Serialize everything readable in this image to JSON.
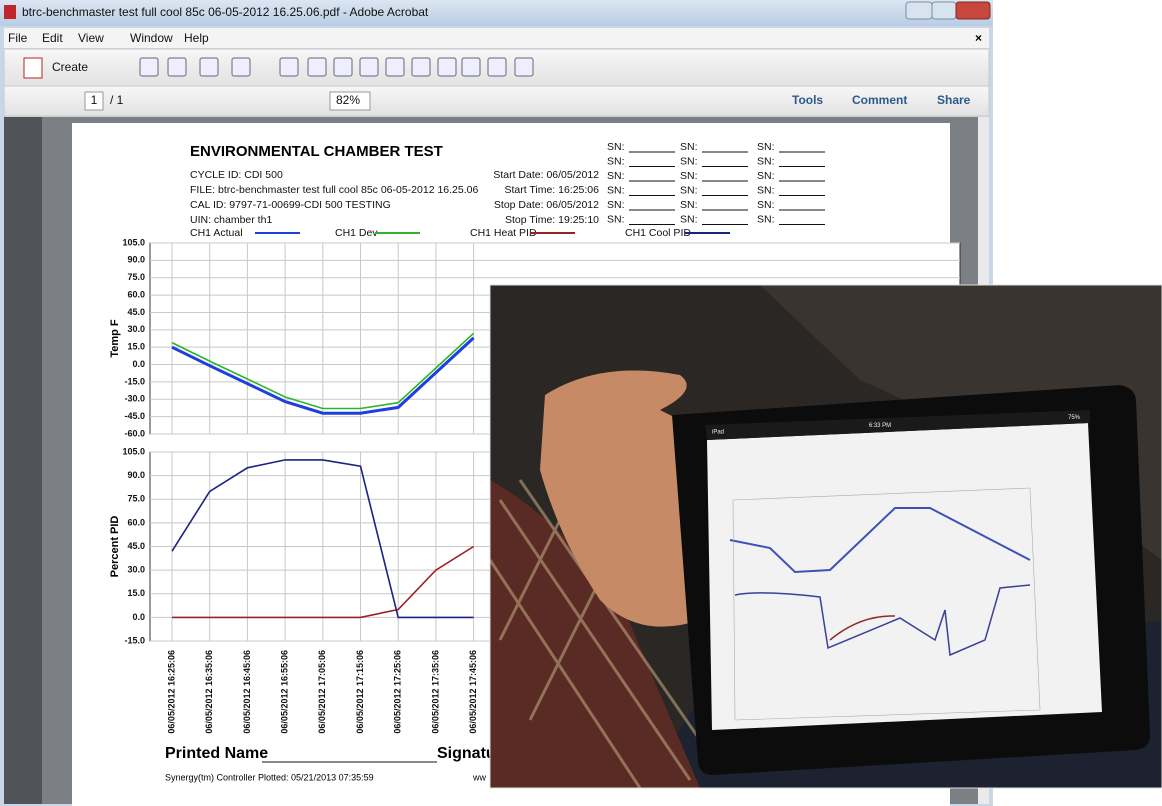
{
  "window": {
    "title": "btrc-benchmaster test full cool 85c 06-05-2012 16.25.06.pdf - Adobe Acrobat"
  },
  "menu": {
    "items": [
      "File",
      "Edit",
      "View",
      "Window",
      "Help"
    ]
  },
  "toolbar": {
    "create": "Create",
    "page": "1",
    "page_total": "/ 1",
    "zoom": "82%",
    "panes": [
      "Tools",
      "Comment",
      "Share"
    ]
  },
  "document": {
    "title": "ENVIRONMENTAL CHAMBER TEST",
    "info_left": [
      "CYCLE ID: CDI 500",
      "FILE: btrc-benchmaster test full cool 85c 06-05-2012 16.25.06",
      "CAL ID: 9797-71-00699-CDI 500 TESTING",
      "UIN: chamber th1"
    ],
    "info_right": [
      "Start Date: 06/05/2012",
      "Start Time: 16:25:06",
      "Stop Date: 06/05/2012",
      "Stop Time: 19:25:10"
    ],
    "sn_label": "SN:",
    "footer": {
      "printed_name": "Printed Name",
      "signature": "Signatu",
      "plotted": "Synergy(tm) Controller Plotted: 05/21/2013 07:35:59",
      "url": "ww"
    }
  },
  "chart_data": [
    {
      "type": "line",
      "y_label": "Temp F",
      "grid": true,
      "categories": [
        "06/05/2012 16:25:06",
        "06/05/2012 16:35:06",
        "06/05/2012 16:45:06",
        "06/05/2012 16:55:06",
        "06/05/2012 17:05:06",
        "06/05/2012 17:15:06",
        "06/05/2012 17:25:06",
        "06/05/2012 17:35:06",
        "06/05/2012 17:45:06"
      ],
      "ylim": [
        -60,
        105
      ],
      "yticks": [
        {
          "value": 105,
          "label": "105.0"
        },
        {
          "value": 90,
          "label": "90.0"
        },
        {
          "value": 75,
          "label": "75.0"
        },
        {
          "value": 60,
          "label": "60.0"
        },
        {
          "value": 45,
          "label": "45.0"
        },
        {
          "value": 30,
          "label": "30.0"
        },
        {
          "value": 15,
          "label": "15.0"
        },
        {
          "value": 0,
          "label": "0.0"
        },
        {
          "value": -15,
          "label": "-15.0"
        },
        {
          "value": -30,
          "label": "-30.0"
        },
        {
          "value": -45,
          "label": "-45.0"
        },
        {
          "value": -60,
          "label": "-60.0"
        }
      ],
      "series": [
        {
          "name": "CH1 Actual",
          "color": "#1f3ee0",
          "values": [
            15,
            -1,
            -16.5,
            -32,
            -42,
            -42,
            -37,
            -7,
            23
          ]
        },
        {
          "name": "CH1 Dev",
          "color": "#2ab52a",
          "values": [
            19,
            3,
            -12.5,
            -28,
            -38,
            -38,
            -33,
            -3,
            27
          ]
        }
      ]
    },
    {
      "type": "line",
      "y_label": "Percent PID",
      "grid": true,
      "categories": [
        "06/05/2012 16:25:06",
        "06/05/2012 16:35:06",
        "06/05/2012 16:45:06",
        "06/05/2012 16:55:06",
        "06/05/2012 17:05:06",
        "06/05/2012 17:15:06",
        "06/05/2012 17:25:06",
        "06/05/2012 17:35:06",
        "06/05/2012 17:45:06"
      ],
      "ylim": [
        -15,
        105
      ],
      "yticks": [
        {
          "value": 105,
          "label": "105.0"
        },
        {
          "value": 90,
          "label": "90.0"
        },
        {
          "value": 75,
          "label": "75.0"
        },
        {
          "value": 60,
          "label": "60.0"
        },
        {
          "value": 45,
          "label": "45.0"
        },
        {
          "value": 30,
          "label": "30.0"
        },
        {
          "value": 15,
          "label": "15.0"
        },
        {
          "value": 0,
          "label": "0.0"
        },
        {
          "value": -15,
          "label": "-15.0"
        }
      ],
      "series": [
        {
          "name": "CH1 Heat PID",
          "color": "#9b2020",
          "values": [
            0,
            0,
            0,
            0,
            0,
            0,
            5,
            30,
            45
          ]
        },
        {
          "name": "CH1 Cool PID",
          "color": "#1a237e",
          "values": [
            42,
            80,
            95,
            100,
            100,
            96,
            0,
            0,
            0
          ]
        }
      ]
    }
  ],
  "photo": {
    "status": [
      "iPad",
      "6:33 PM",
      "75%"
    ]
  }
}
